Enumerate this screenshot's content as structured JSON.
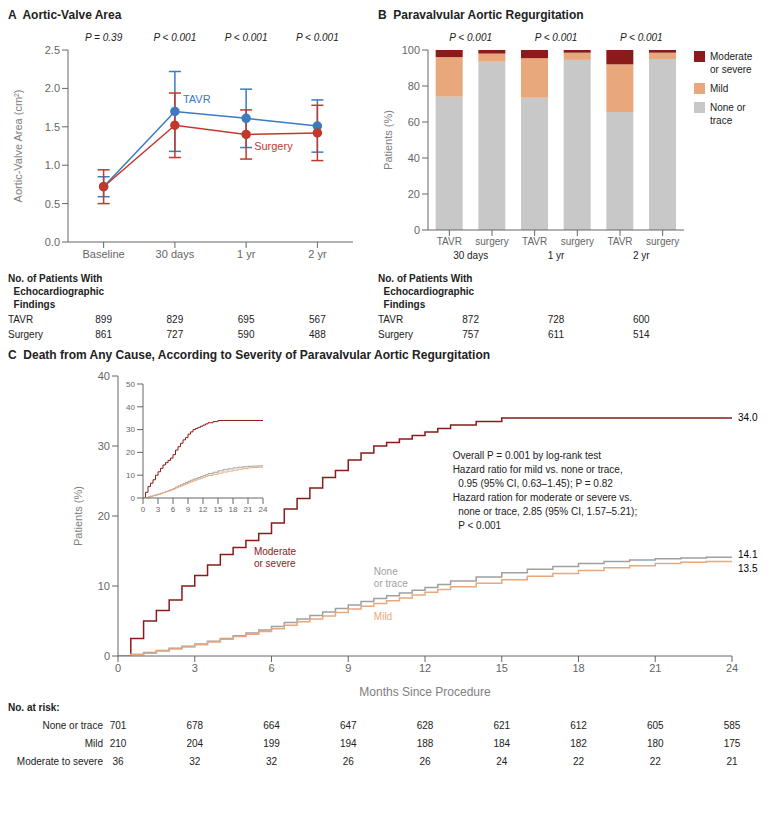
{
  "chart_data": [
    {
      "type": "line",
      "title": "A  Aortic-Valve Area",
      "categories": [
        "Baseline",
        "30 days",
        "1 yr",
        "2 yr"
      ],
      "ylabel": "Aortic-Valve Area (cm²)",
      "ylim": [
        0.0,
        2.5
      ],
      "yticks": [
        {
          "value": 0.0,
          "label": "0.0"
        },
        0.5,
        {
          "value": 1.0,
          "label": "1.0"
        },
        1.5,
        {
          "value": 2.0,
          "label": "2.0"
        },
        2.5
      ],
      "series": [
        {
          "name": "TAVR",
          "color": "#3b7bbf",
          "marker": "circle",
          "values": [
            0.72,
            1.7,
            1.61,
            1.51
          ],
          "errors": [
            0.13,
            0.52,
            0.38,
            0.34
          ]
        },
        {
          "name": "Surgery",
          "color": "#c0392b",
          "marker": "circle",
          "values": [
            0.72,
            1.52,
            1.4,
            1.42
          ],
          "errors": [
            0.22,
            0.42,
            0.32,
            0.36
          ]
        }
      ],
      "pvalues": [
        "P = 0.39",
        "P < 0.001",
        "P < 0.001",
        "P < 0.001"
      ],
      "table": {
        "title": "No. of Patients With\n  Echocardiographic\n  Findings",
        "rows": [
          {
            "name": "TAVR",
            "values": [
              899,
              829,
              695,
              567
            ]
          },
          {
            "name": "Surgery",
            "values": [
              861,
              727,
              590,
              488
            ]
          }
        ]
      }
    },
    {
      "type": "bar",
      "stacked": true,
      "legend": "right",
      "title": "B  Paravalvular Aortic Regurgitation",
      "categories": [
        "TAVR",
        "surgery",
        "TAVR",
        "surgery",
        "TAVR",
        "surgery"
      ],
      "groups": [
        "30 days",
        "1 yr",
        "2 yr"
      ],
      "ylabel": "Patients (%)",
      "ylim": [
        0,
        100
      ],
      "yticks": [
        0,
        20,
        40,
        60,
        80,
        100
      ],
      "series": [
        {
          "name": "None or\ntrace",
          "color": "#c8c8c8",
          "values": [
            74.0,
            93.5,
            73.5,
            94.5,
            65.5,
            95.0
          ]
        },
        {
          "name": "Mild",
          "color": "#e8a87c",
          "values": [
            22.0,
            4.5,
            22.0,
            4.0,
            26.5,
            3.5
          ]
        },
        {
          "name": "Moderate\nor severe",
          "color": "#8b1a1a",
          "values": [
            4.0,
            2.0,
            4.5,
            1.5,
            8.0,
            1.5
          ]
        }
      ],
      "pvalues": [
        "P < 0.001",
        "P < 0.001",
        "P < 0.001"
      ],
      "table": {
        "title": "No. of Patients With\n  Echocardiographic\n  Findings",
        "rows": [
          {
            "name": "TAVR",
            "values": [
              872,
              728,
              600
            ]
          },
          {
            "name": "Surgery",
            "values": [
              757,
              611,
              514
            ]
          }
        ]
      }
    },
    {
      "type": "line",
      "line_style": "step",
      "title": "C  Death from Any Cause, According to Severity of Paravalvular Aortic Regurgitation",
      "xlabel": "Months Since Procedure",
      "ylabel": "Patients (%)",
      "xlim": [
        0,
        24
      ],
      "ylim": [
        0,
        40
      ],
      "xticks": [
        0,
        3,
        6,
        9,
        12,
        15,
        18,
        21,
        24
      ],
      "yticks": [
        0,
        10,
        20,
        30,
        40
      ],
      "series": [
        {
          "name": "Moderate\nor severe",
          "color": "#8b1a1a",
          "end_label": "34.0",
          "x": [
            0,
            0.5,
            1,
            1.5,
            2,
            2.5,
            3,
            3.5,
            4,
            4.5,
            5,
            5.5,
            6,
            6.5,
            7,
            7.5,
            8,
            8.5,
            9,
            9.5,
            10,
            10.5,
            11,
            11.5,
            12,
            12.5,
            13,
            14,
            15,
            16,
            17,
            18,
            21,
            24
          ],
          "values": [
            0,
            2.5,
            5,
            6.5,
            8,
            10,
            11.5,
            13,
            14.5,
            15.5,
            16.5,
            17.5,
            19,
            21,
            22.5,
            24,
            25.5,
            26.5,
            28,
            29,
            30,
            30.5,
            31,
            31.5,
            32,
            32.5,
            33,
            33.5,
            34,
            34,
            34,
            34,
            34,
            34
          ]
        },
        {
          "name": "None\nor trace",
          "color": "#a0a0a0",
          "end_label": "14.1",
          "x": [
            0,
            0.5,
            1,
            1.5,
            2,
            2.5,
            3,
            3.5,
            4,
            4.5,
            5,
            5.5,
            6,
            6.5,
            7,
            7.5,
            8,
            8.5,
            9,
            9.5,
            10,
            10.5,
            11,
            11.5,
            12,
            12.5,
            13,
            14,
            15,
            16,
            17,
            18,
            19,
            20,
            21,
            22,
            23,
            24
          ],
          "values": [
            0,
            0.2,
            0.5,
            0.8,
            1.1,
            1.4,
            1.7,
            2.1,
            2.5,
            2.9,
            3.3,
            3.7,
            4.2,
            4.8,
            5.3,
            5.8,
            6.3,
            6.8,
            7.3,
            7.8,
            8.2,
            8.6,
            9.0,
            9.4,
            9.8,
            10.2,
            10.7,
            11.3,
            11.9,
            12.4,
            12.8,
            13.2,
            13.5,
            13.7,
            13.9,
            14.0,
            14.1,
            14.1
          ]
        },
        {
          "name": "Mild",
          "color": "#e8a87c",
          "end_label": "13.5",
          "x": [
            0,
            0.5,
            1,
            1.5,
            2,
            2.5,
            3,
            3.5,
            4,
            4.5,
            5,
            5.5,
            6,
            6.5,
            7,
            7.5,
            8,
            8.5,
            9,
            9.5,
            10,
            10.5,
            11,
            11.5,
            12,
            12.5,
            13,
            14,
            15,
            16,
            17,
            18,
            19,
            20,
            21,
            22,
            23,
            24
          ],
          "values": [
            0,
            0.2,
            0.4,
            0.7,
            1.0,
            1.3,
            1.6,
            2.0,
            2.4,
            2.8,
            3.1,
            3.5,
            3.9,
            4.4,
            4.9,
            5.3,
            5.7,
            6.2,
            6.7,
            7.1,
            7.5,
            7.9,
            8.3,
            8.7,
            9.1,
            9.5,
            9.9,
            10.4,
            10.9,
            11.4,
            11.8,
            12.2,
            12.6,
            12.9,
            13.2,
            13.4,
            13.5,
            13.5
          ]
        }
      ],
      "annotation": "Overall P = 0.001 by log-rank test\nHazard ratio for mild vs. none or trace,\n  0.95 (95% CI, 0.63–1.45); P = 0.82\nHazard ration for moderate or severe vs.\n  none or trace, 2.85 (95% CI, 1.57–5.21);\n  P < 0.001",
      "inset": {
        "xlim": [
          0,
          24
        ],
        "ylim": [
          0,
          50
        ],
        "xticks": [
          0,
          3,
          6,
          9,
          12,
          15,
          18,
          21,
          24
        ],
        "yticks": [
          0,
          10,
          20,
          30,
          40,
          50
        ]
      },
      "risk_table": {
        "title": "No. at risk:",
        "x": [
          0,
          3,
          6,
          9,
          12,
          15,
          18,
          21,
          24
        ],
        "rows": [
          {
            "name": "None or trace",
            "values": [
              701,
              678,
              664,
              647,
              628,
              621,
              612,
              605,
              585
            ]
          },
          {
            "name": "Mild",
            "values": [
              210,
              204,
              199,
              194,
              188,
              184,
              182,
              180,
              175
            ]
          },
          {
            "name": "Moderate to severe",
            "values": [
              36,
              32,
              32,
              26,
              26,
              24,
              22,
              22,
              21
            ]
          }
        ]
      }
    }
  ]
}
